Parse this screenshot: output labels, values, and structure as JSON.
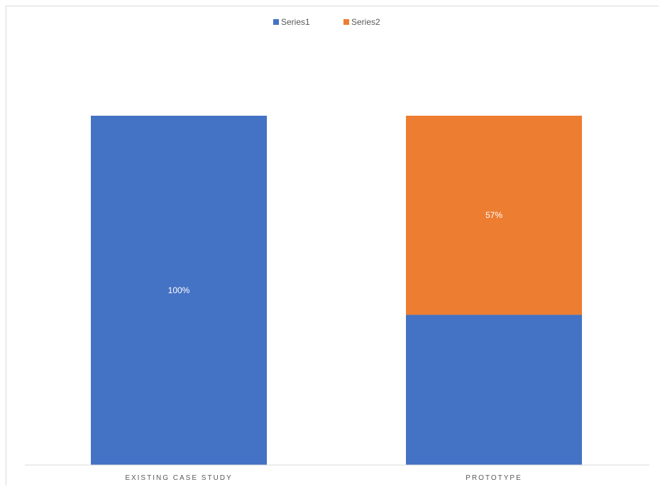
{
  "chart_data": {
    "type": "bar",
    "stacked": true,
    "categories": [
      "EXISTING CASE STUDY",
      "PROTOTYPE"
    ],
    "series": [
      {
        "name": "Series1",
        "values": [
          100,
          43
        ],
        "color": "#4472C4",
        "data_labels": [
          "100%",
          ""
        ]
      },
      {
        "name": "Series2",
        "values": [
          0,
          57
        ],
        "color": "#ED7D31",
        "data_labels": [
          "",
          "57%"
        ]
      }
    ],
    "ylim": [
      0,
      100
    ],
    "title": "",
    "xlabel": "",
    "ylabel": "",
    "legend_position": "top",
    "grid": false,
    "y_axis_visible": false
  }
}
